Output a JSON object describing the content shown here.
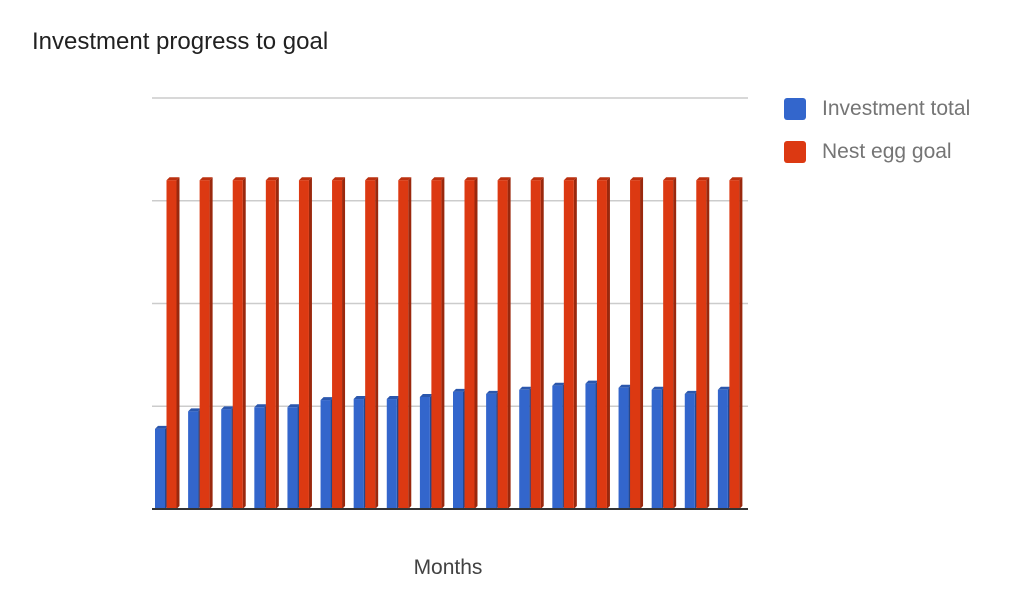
{
  "chart_data": {
    "type": "bar",
    "title": "Investment progress to goal",
    "xlabel": "Months",
    "ylabel": "",
    "ylim": [
      0,
      4
    ],
    "gridlines": [
      1,
      2,
      3,
      4
    ],
    "grid": true,
    "legend_position": "top-right",
    "categories": [
      "",
      "",
      "",
      "",
      "",
      "",
      "",
      "",
      "",
      "",
      "",
      "",
      "",
      "",
      "",
      "",
      "",
      ""
    ],
    "series": [
      {
        "name": "Investment total",
        "color": "#3366CC",
        "values": [
          0.78,
          0.95,
          0.97,
          0.99,
          0.99,
          1.06,
          1.07,
          1.07,
          1.09,
          1.14,
          1.12,
          1.16,
          1.2,
          1.22,
          1.18,
          1.16,
          1.12,
          1.16
        ]
      },
      {
        "name": "Nest egg goal",
        "color": "#DC3912",
        "values": [
          3.2,
          3.2,
          3.2,
          3.2,
          3.2,
          3.2,
          3.2,
          3.2,
          3.2,
          3.2,
          3.2,
          3.2,
          3.2,
          3.2,
          3.2,
          3.2,
          3.2,
          3.2
        ]
      }
    ]
  }
}
